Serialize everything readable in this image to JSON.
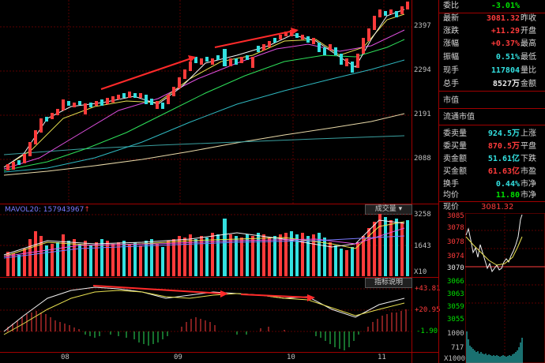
{
  "main_chart": {
    "price_axis": [
      "2397",
      "2294",
      "2191",
      "2088"
    ]
  },
  "volume_panel": {
    "indicator_label": "MAVOL20: 157943967",
    "indicator_arrow": "↑",
    "button_label": "成交量",
    "axis": [
      "3258",
      "1643"
    ],
    "unit": "X10"
  },
  "macd_panel": {
    "button_label": "指标说明",
    "axis": [
      "+43.81",
      "+20.95",
      "-1.90"
    ]
  },
  "x_axis": [
    "08",
    "09",
    "10",
    "11"
  ],
  "quote": {
    "rows": [
      {
        "label": "委比",
        "value": "-3.01%",
        "value_color": "green",
        "label2": ""
      },
      {
        "label": "最新",
        "value": "3081.32",
        "value_color": "red",
        "label2": "昨收"
      },
      {
        "label": "涨跌",
        "value": "+11.29",
        "value_color": "red",
        "label2": "开盘"
      },
      {
        "label": "涨幅",
        "value": "+0.37%",
        "value_color": "red",
        "label2": "最高"
      },
      {
        "label": "振幅",
        "value": "0.51%",
        "value_color": "cyan",
        "label2": "最低"
      },
      {
        "label": "现手",
        "value": "117804",
        "value_color": "cyan",
        "label2": "量比"
      },
      {
        "label": "总手",
        "value": "8527万",
        "value_color": "white",
        "label2": "金额"
      }
    ],
    "section_label": "市值",
    "float_label": "流通市值",
    "rows2": [
      {
        "label": "委卖量",
        "value": "924.5万",
        "value_color": "cyan",
        "label2": "上涨"
      },
      {
        "label": "委买量",
        "value": "870.5万",
        "value_color": "red",
        "label2": "平盘"
      },
      {
        "label": "卖金额",
        "value": "51.61亿",
        "value_color": "cyan",
        "label2": "下跌"
      },
      {
        "label": "买金额",
        "value": "61.63亿",
        "value_color": "red",
        "label2": "市盈"
      },
      {
        "label": "换手",
        "value": "0.44%",
        "value_color": "cyan",
        "label2": "市净"
      },
      {
        "label": "均价",
        "value": "11.80",
        "value_color": "green",
        "label2": "市净"
      }
    ]
  },
  "intraday": {
    "label": "现价",
    "price": "3081.32",
    "price_axis": [
      "3085",
      "3078",
      "3074",
      "3070",
      "3066",
      "3063",
      "3059",
      "3055"
    ],
    "volume_axis": [
      "1000",
      "717",
      "X1000"
    ]
  },
  "colors": {
    "up": "#ff3b3b",
    "down": "#33e0e0",
    "grid": "#a00000"
  }
}
